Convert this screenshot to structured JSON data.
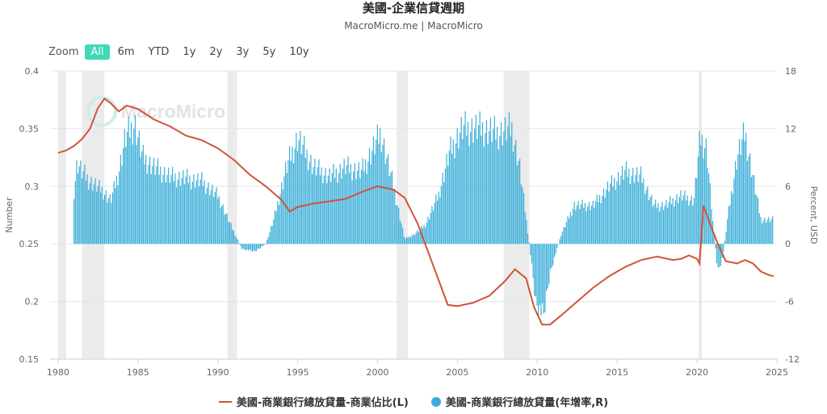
{
  "header": {
    "title": "美國-企業信貸週期",
    "subtitle": "MacroMicro.me | MacroMicro"
  },
  "zoom": {
    "label": "Zoom",
    "options": [
      "All",
      "6m",
      "YTD",
      "1y",
      "2y",
      "3y",
      "5y",
      "10y"
    ],
    "active": "All"
  },
  "watermark": "MacroMicro",
  "colors": {
    "line": "#d0533a",
    "bars": "#3aaed8",
    "recession": "#ebebeb",
    "grid": "#e6e6e6",
    "zoom_active": "#3fd9b5"
  },
  "chart_data": {
    "type": "bar+line",
    "xlim": [
      1979.5,
      2025.0
    ],
    "x_ticks": [
      "1980",
      "1985",
      "1990",
      "1995",
      "2000",
      "2005",
      "2010",
      "2015",
      "2020",
      "2025"
    ],
    "y_left": {
      "label": "Number",
      "lim": [
        0.15,
        0.4
      ],
      "ticks": [
        "0.15",
        "0.2",
        "0.25",
        "0.3",
        "0.35",
        "0.4"
      ]
    },
    "y_right": {
      "label": "Percent, USD",
      "lim": [
        -12,
        18
      ],
      "ticks": [
        "-12",
        "-6",
        "0",
        "6",
        "12",
        "18"
      ]
    },
    "recessions": [
      [
        1980.0,
        1980.5
      ],
      [
        1981.5,
        1982.9
      ],
      [
        1990.6,
        1991.2
      ],
      [
        2001.2,
        2001.9
      ],
      [
        2007.9,
        2009.5
      ],
      [
        2020.1,
        2020.3
      ]
    ],
    "series": [
      {
        "name": "美國-商業銀行總放貸量-商業佔比(L)",
        "type": "line",
        "axis": "left",
        "points": [
          [
            1980.0,
            0.329
          ],
          [
            1980.5,
            0.331
          ],
          [
            1981.0,
            0.335
          ],
          [
            1981.5,
            0.341
          ],
          [
            1982.0,
            0.35
          ],
          [
            1982.5,
            0.368
          ],
          [
            1982.9,
            0.376
          ],
          [
            1983.3,
            0.372
          ],
          [
            1983.8,
            0.365
          ],
          [
            1984.3,
            0.37
          ],
          [
            1985.0,
            0.367
          ],
          [
            1986.0,
            0.358
          ],
          [
            1987.0,
            0.352
          ],
          [
            1988.0,
            0.344
          ],
          [
            1989.0,
            0.34
          ],
          [
            1990.0,
            0.333
          ],
          [
            1991.0,
            0.323
          ],
          [
            1992.0,
            0.31
          ],
          [
            1993.0,
            0.3
          ],
          [
            1994.0,
            0.288
          ],
          [
            1994.5,
            0.278
          ],
          [
            1995.0,
            0.282
          ],
          [
            1996.0,
            0.285
          ],
          [
            1997.0,
            0.287
          ],
          [
            1998.0,
            0.289
          ],
          [
            1999.0,
            0.295
          ],
          [
            2000.0,
            0.3
          ],
          [
            2001.0,
            0.297
          ],
          [
            2001.7,
            0.29
          ],
          [
            2002.5,
            0.268
          ],
          [
            2003.3,
            0.238
          ],
          [
            2004.0,
            0.212
          ],
          [
            2004.4,
            0.197
          ],
          [
            2005.0,
            0.196
          ],
          [
            2006.0,
            0.199
          ],
          [
            2007.0,
            0.205
          ],
          [
            2008.0,
            0.218
          ],
          [
            2008.6,
            0.228
          ],
          [
            2009.3,
            0.22
          ],
          [
            2009.8,
            0.195
          ],
          [
            2010.3,
            0.18
          ],
          [
            2010.8,
            0.18
          ],
          [
            2011.5,
            0.188
          ],
          [
            2012.5,
            0.2
          ],
          [
            2013.5,
            0.212
          ],
          [
            2014.5,
            0.222
          ],
          [
            2015.5,
            0.23
          ],
          [
            2016.5,
            0.236
          ],
          [
            2017.5,
            0.239
          ],
          [
            2018.5,
            0.236
          ],
          [
            2019.0,
            0.237
          ],
          [
            2019.5,
            0.24
          ],
          [
            2020.0,
            0.237
          ],
          [
            2020.15,
            0.233
          ],
          [
            2020.4,
            0.283
          ],
          [
            2020.8,
            0.268
          ],
          [
            2021.3,
            0.25
          ],
          [
            2021.8,
            0.235
          ],
          [
            2022.5,
            0.233
          ],
          [
            2023.0,
            0.236
          ],
          [
            2023.5,
            0.233
          ],
          [
            2024.0,
            0.226
          ],
          [
            2024.5,
            0.223
          ],
          [
            2024.8,
            0.222
          ]
        ]
      },
      {
        "name": "美國-商業銀行總放貸量(年增率,R)",
        "type": "bar",
        "axis": "right",
        "step": 0.0833,
        "anchors": [
          [
            1981.0,
            5.5
          ],
          [
            1981.2,
            8.5
          ],
          [
            1981.5,
            7.5
          ],
          [
            1982.0,
            6.5
          ],
          [
            1982.8,
            5.5
          ],
          [
            1983.3,
            4.5
          ],
          [
            1983.8,
            7.5
          ],
          [
            1984.2,
            11.0
          ],
          [
            1984.8,
            12.5
          ],
          [
            1985.3,
            9.0
          ],
          [
            1986.0,
            8.0
          ],
          [
            1987.0,
            7.0
          ],
          [
            1988.0,
            6.8
          ],
          [
            1989.0,
            6.5
          ],
          [
            1990.0,
            5.0
          ],
          [
            1990.8,
            2.0
          ],
          [
            1991.5,
            -0.5
          ],
          [
            1992.3,
            -0.8
          ],
          [
            1993.0,
            0.0
          ],
          [
            1993.5,
            2.5
          ],
          [
            1994.3,
            8.0
          ],
          [
            1995.0,
            11.0
          ],
          [
            1996.0,
            8.0
          ],
          [
            1997.0,
            7.0
          ],
          [
            1998.0,
            8.0
          ],
          [
            1999.0,
            7.5
          ],
          [
            2000.2,
            11.5
          ],
          [
            2001.0,
            6.0
          ],
          [
            2001.7,
            0.5
          ],
          [
            2002.3,
            1.0
          ],
          [
            2003.0,
            2.0
          ],
          [
            2003.8,
            5.0
          ],
          [
            2004.5,
            9.5
          ],
          [
            2005.3,
            12.0
          ],
          [
            2006.5,
            12.0
          ],
          [
            2007.5,
            11.5
          ],
          [
            2008.4,
            12.0
          ],
          [
            2008.9,
            8.0
          ],
          [
            2009.5,
            0.0
          ],
          [
            2009.9,
            -6.0
          ],
          [
            2010.4,
            -7.5
          ],
          [
            2010.8,
            -3.0
          ],
          [
            2011.5,
            1.0
          ],
          [
            2012.3,
            4.0
          ],
          [
            2013.5,
            4.0
          ],
          [
            2014.5,
            6.0
          ],
          [
            2015.5,
            7.5
          ],
          [
            2016.5,
            7.0
          ],
          [
            2017.3,
            4.0
          ],
          [
            2018.0,
            4.0
          ],
          [
            2019.0,
            5.0
          ],
          [
            2019.8,
            4.5
          ],
          [
            2020.2,
            11.0
          ],
          [
            2020.6,
            10.0
          ],
          [
            2021.0,
            2.0
          ],
          [
            2021.3,
            -3.0
          ],
          [
            2021.6,
            -1.5
          ],
          [
            2021.9,
            2.5
          ],
          [
            2022.5,
            9.0
          ],
          [
            2023.0,
            11.5
          ],
          [
            2023.5,
            7.0
          ],
          [
            2024.0,
            2.5
          ],
          [
            2024.8,
            2.5
          ]
        ]
      }
    ],
    "legend_position": "bottom-center"
  }
}
